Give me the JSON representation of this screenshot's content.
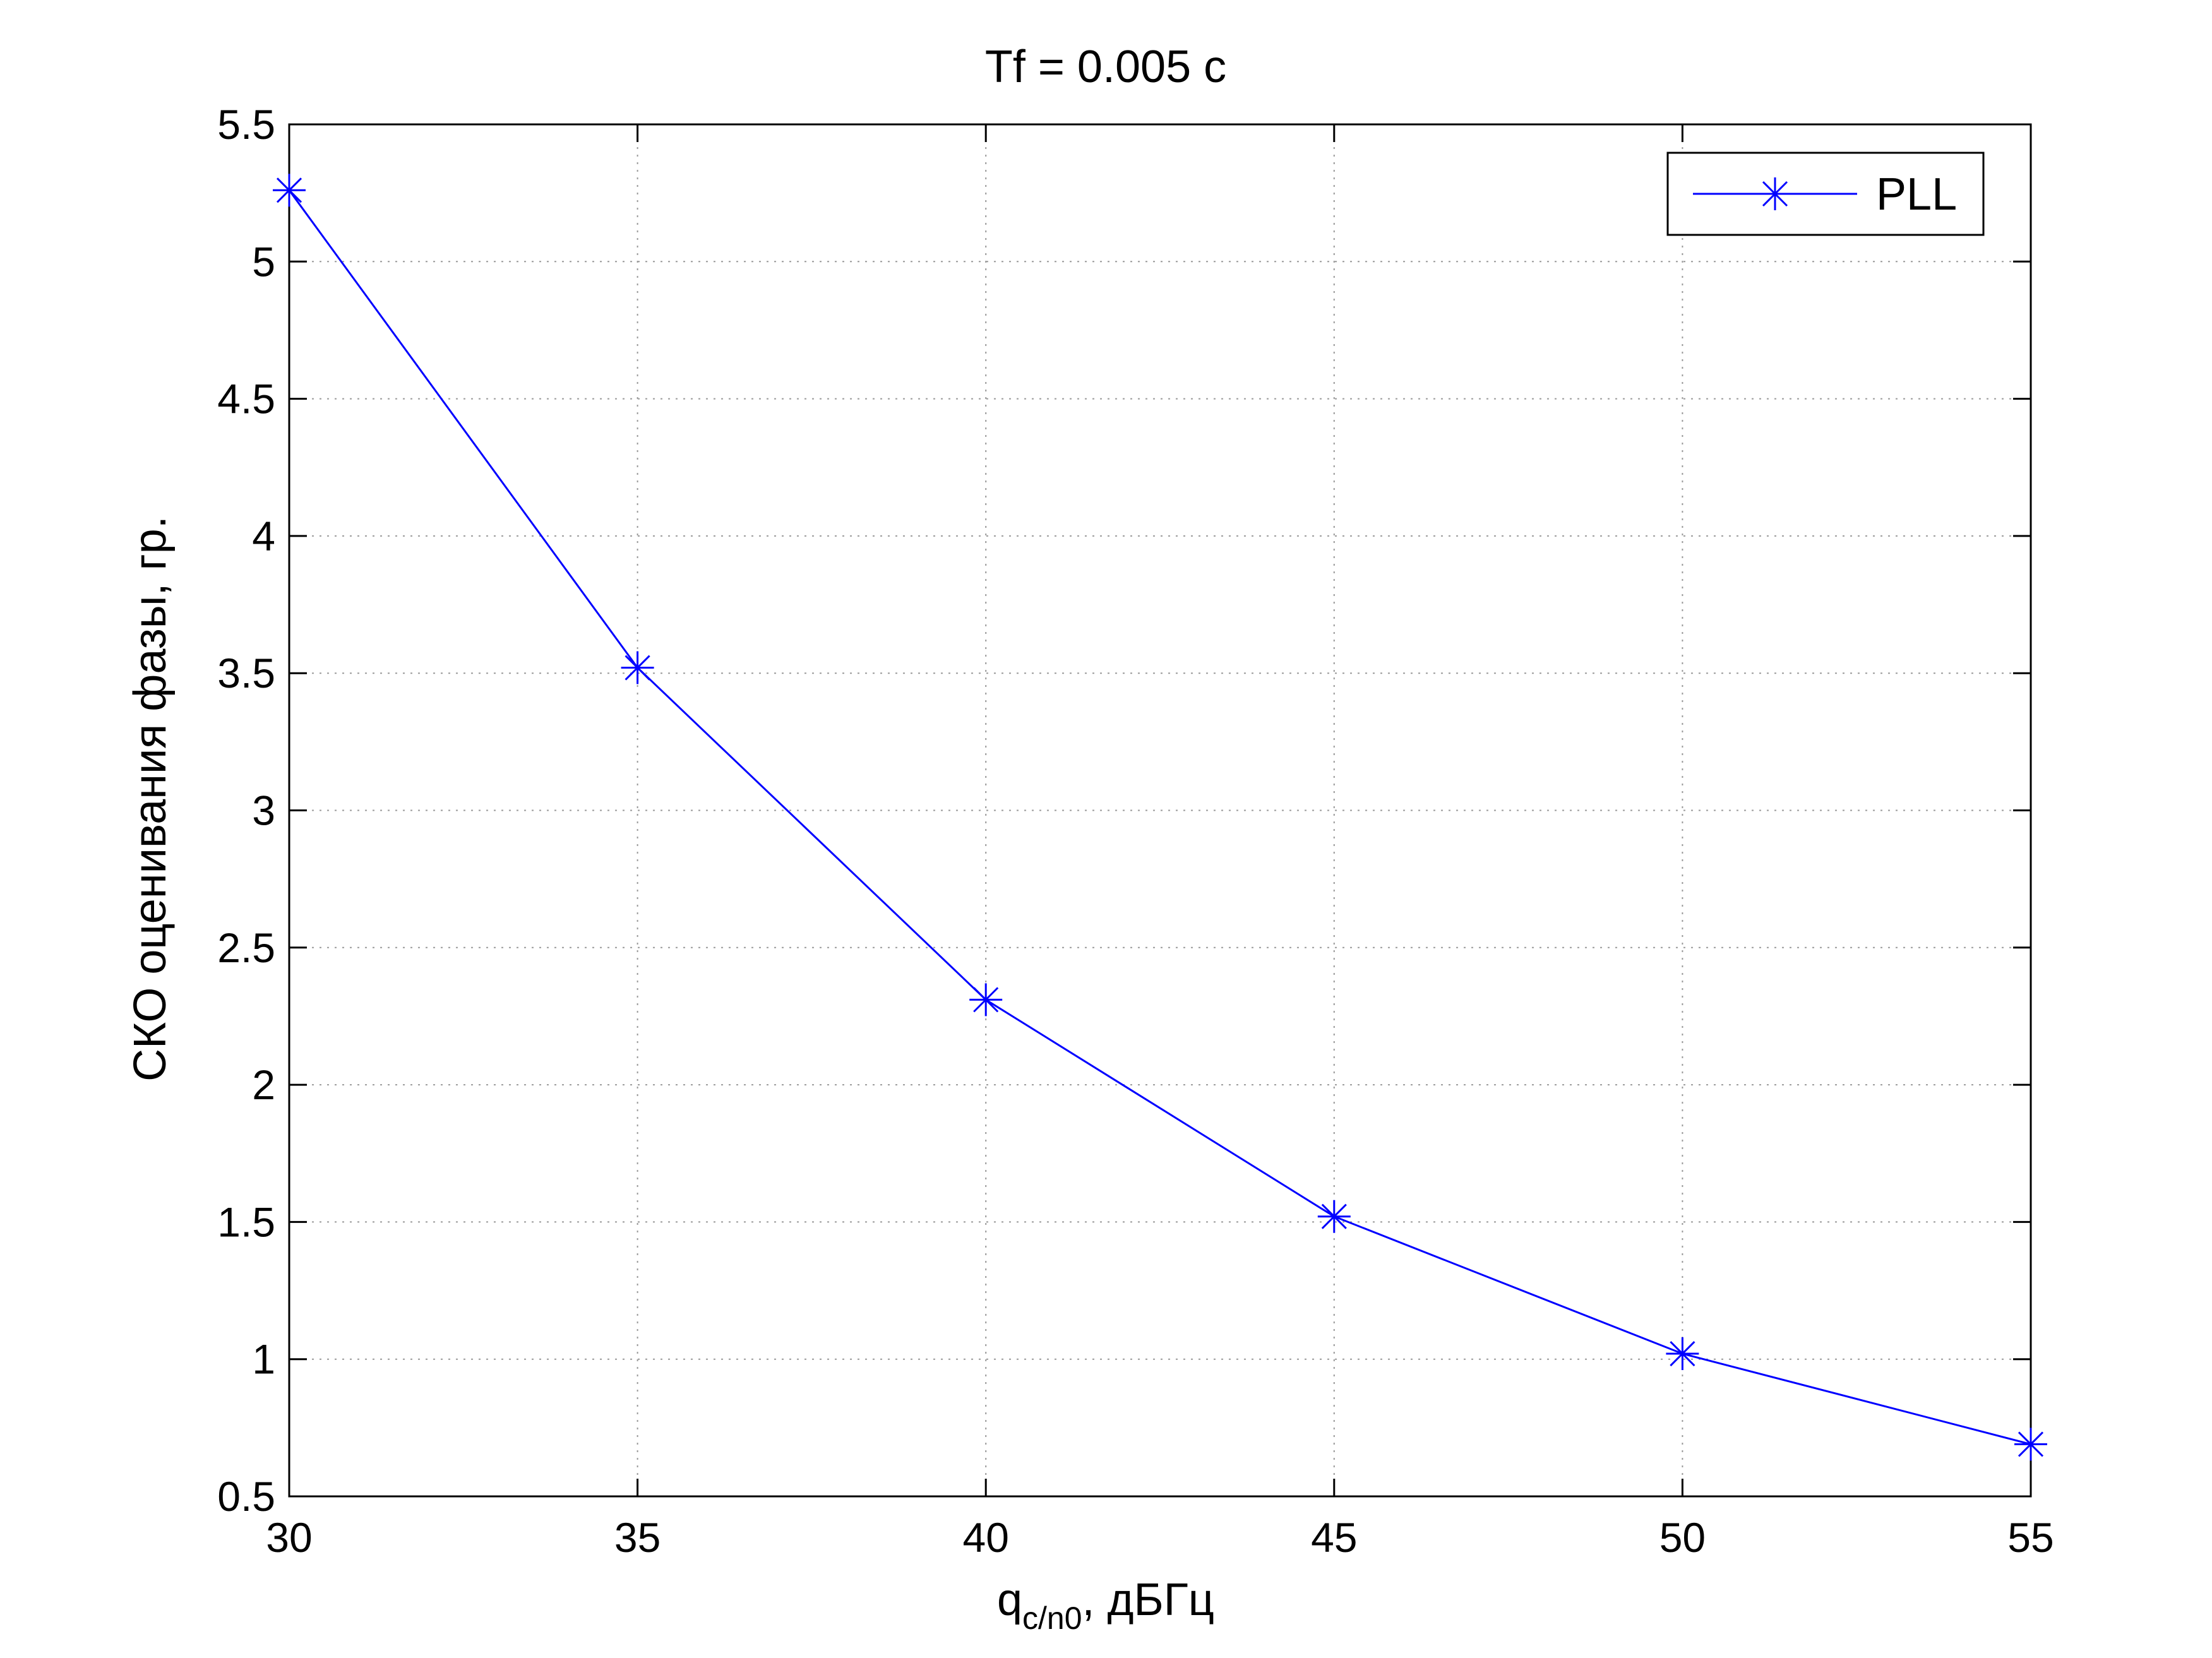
{
  "chart_data": {
    "type": "line",
    "title": "Tf = 0.005 с",
    "xlabel": {
      "base": "q",
      "subscript": "c/n0",
      "suffix": ", дБГц"
    },
    "ylabel": "СКО оценивания фазы, гр.",
    "x": [
      30,
      35,
      40,
      45,
      50,
      55
    ],
    "series": [
      {
        "name": "PLL",
        "values": [
          5.26,
          3.52,
          2.31,
          1.52,
          1.02,
          0.69
        ],
        "color": "#0000ff",
        "marker": "asterisk"
      }
    ],
    "xlim": [
      30,
      55
    ],
    "ylim": [
      0.5,
      5.5
    ],
    "xticks": [
      "30",
      "35",
      "40",
      "45",
      "50",
      "55"
    ],
    "yticks": [
      "0.5",
      "1",
      "1.5",
      "2",
      "2.5",
      "3",
      "3.5",
      "4",
      "4.5",
      "5",
      "5.5"
    ],
    "grid": true,
    "legend_position": "top-right"
  }
}
